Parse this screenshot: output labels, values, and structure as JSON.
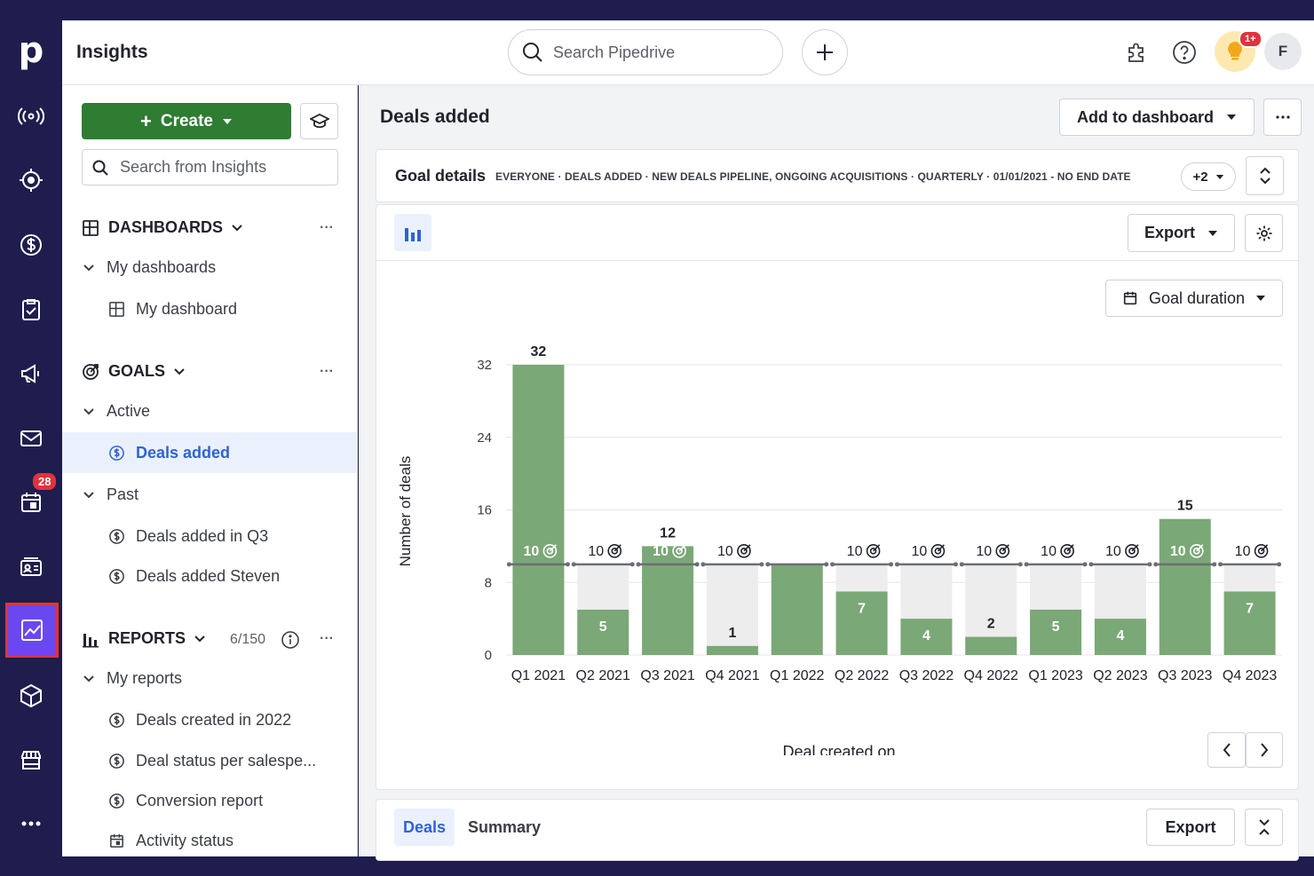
{
  "app": {
    "logo": "p",
    "title": "Insights"
  },
  "header": {
    "search_placeholder": "Search Pipedrive",
    "bulb_badge": "1+",
    "avatar_initial": "F"
  },
  "rail": {
    "activity_badge": "28"
  },
  "sidebar": {
    "create_label": "Create",
    "search_placeholder": "Search from Insights",
    "dashboards": {
      "label": "DASHBOARDS",
      "group": "My dashboards",
      "items": [
        "My dashboard"
      ]
    },
    "goals": {
      "label": "GOALS",
      "active_label": "Active",
      "active_items": [
        "Deals added"
      ],
      "past_label": "Past",
      "past_items": [
        "Deals added in Q3",
        "Deals added Steven"
      ]
    },
    "reports": {
      "label": "REPORTS",
      "count": "6/150",
      "group": "My reports",
      "items": [
        "Deals created in 2022",
        "Deal status per salespe...",
        "Conversion report",
        "Activity status"
      ]
    }
  },
  "main": {
    "title": "Deals added",
    "add_to_dashboard": "Add to dashboard",
    "goal_details_label": "Goal details",
    "goal_meta": "EVERYONE  ·  DEALS ADDED  ·  NEW DEALS PIPELINE, ONGOING ACQUISITIONS  ·  QUARTERLY  ·  01/01/2021 - NO END DATE",
    "goal_more": "+2",
    "export_label": "Export",
    "goal_duration_label": "Goal duration",
    "tabs": [
      "Deals",
      "Summary"
    ],
    "bottom_export": "Export"
  },
  "colors": {
    "bar_fill": "#7aa876",
    "bar_goal_bg": "#ededee",
    "goal_line": "#6b6e75",
    "accent": "#2f63d4",
    "create_green": "#2e7d32",
    "rail_bg": "#1f1d4d",
    "rail_active": "#6a48ef"
  },
  "chart_data": {
    "type": "bar",
    "categories": [
      "Q1 2021",
      "Q2 2021",
      "Q3 2021",
      "Q4 2021",
      "Q1 2022",
      "Q2 2022",
      "Q3 2022",
      "Q4 2022",
      "Q1 2023",
      "Q2 2023",
      "Q3 2023",
      "Q4 2023"
    ],
    "series": [
      {
        "values": [
          32,
          5,
          12,
          1,
          10,
          7,
          4,
          2,
          5,
          4,
          15,
          7
        ]
      },
      {
        "values": [
          10,
          10,
          10,
          10,
          10,
          10,
          10,
          10,
          10,
          10,
          10,
          10
        ]
      }
    ],
    "xlabel": "Deal created on",
    "ylabel": "Number of deals",
    "yticks": [
      0,
      8,
      16,
      24,
      32
    ],
    "ylim": [
      0,
      32
    ],
    "grid": true
  }
}
